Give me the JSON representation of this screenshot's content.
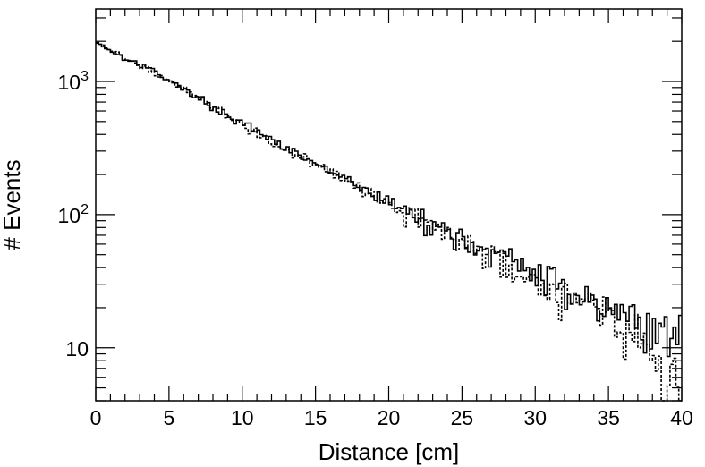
{
  "chart_data": {
    "type": "histogram",
    "xlabel": "Distance [cm]",
    "ylabel": "# Events",
    "xlim": [
      0,
      40
    ],
    "ylim": [
      4,
      3500
    ],
    "y_scale": "log",
    "x_ticks": [
      0,
      5,
      10,
      15,
      20,
      25,
      30,
      35,
      40
    ],
    "x_tick_labels": [
      "0",
      "5",
      "10",
      "15",
      "20",
      "25",
      "30",
      "35",
      "40"
    ],
    "y_ticks": [
      {
        "value": 10,
        "base": "10",
        "exp": ""
      },
      {
        "value": 100,
        "base": "10",
        "exp": "2"
      },
      {
        "value": 1000,
        "base": "10",
        "exp": "3"
      }
    ],
    "grid": false,
    "bin_width": 0.2,
    "series": [
      {
        "line_style": "solid",
        "color": "#000000",
        "points": [
          [
            0,
            2000
          ],
          [
            1,
            1700
          ],
          [
            2,
            1500
          ],
          [
            3,
            1350
          ],
          [
            4,
            1200
          ],
          [
            5,
            1020
          ],
          [
            6,
            870
          ],
          [
            7,
            760
          ],
          [
            8,
            640
          ],
          [
            9,
            560
          ],
          [
            10,
            470
          ],
          [
            11,
            420
          ],
          [
            12,
            360
          ],
          [
            13,
            320
          ],
          [
            14,
            270
          ],
          [
            15,
            240
          ],
          [
            16,
            210
          ],
          [
            17,
            185
          ],
          [
            18,
            160
          ],
          [
            19,
            140
          ],
          [
            20,
            125
          ],
          [
            21,
            108
          ],
          [
            22,
            95
          ],
          [
            23,
            85
          ],
          [
            24,
            74
          ],
          [
            25,
            66
          ],
          [
            26,
            58
          ],
          [
            27,
            52
          ],
          [
            28,
            46
          ],
          [
            29,
            41
          ],
          [
            30,
            36
          ],
          [
            31,
            32
          ],
          [
            32,
            28.5
          ],
          [
            33,
            25.5
          ],
          [
            34,
            22.5
          ],
          [
            35,
            20
          ],
          [
            36,
            18
          ],
          [
            37,
            16
          ],
          [
            38,
            14.5
          ],
          [
            39,
            13
          ],
          [
            40,
            12
          ]
        ]
      },
      {
        "line_style": "dashed",
        "color": "#000000",
        "points": [
          [
            0,
            1980
          ],
          [
            1,
            1690
          ],
          [
            2,
            1490
          ],
          [
            3,
            1340
          ],
          [
            4,
            1190
          ],
          [
            5,
            1010
          ],
          [
            6,
            860
          ],
          [
            7,
            750
          ],
          [
            8,
            635
          ],
          [
            9,
            555
          ],
          [
            10,
            465
          ],
          [
            11,
            415
          ],
          [
            12,
            355
          ],
          [
            13,
            315
          ],
          [
            14,
            268
          ],
          [
            15,
            236
          ],
          [
            16,
            207
          ],
          [
            17,
            182
          ],
          [
            18,
            157
          ],
          [
            19,
            137
          ],
          [
            20,
            122
          ],
          [
            21,
            104
          ],
          [
            22,
            92
          ],
          [
            23,
            82
          ],
          [
            24,
            71
          ],
          [
            25,
            63
          ],
          [
            26,
            55
          ],
          [
            27,
            49
          ],
          [
            28,
            43
          ],
          [
            29,
            38
          ],
          [
            30,
            33
          ],
          [
            31,
            29
          ],
          [
            32,
            26
          ],
          [
            33,
            23
          ],
          [
            34,
            20
          ],
          [
            35,
            17.5
          ],
          [
            36,
            15
          ],
          [
            37,
            12.5
          ],
          [
            38,
            9.5
          ],
          [
            39,
            7
          ],
          [
            40,
            5
          ]
        ]
      }
    ]
  }
}
